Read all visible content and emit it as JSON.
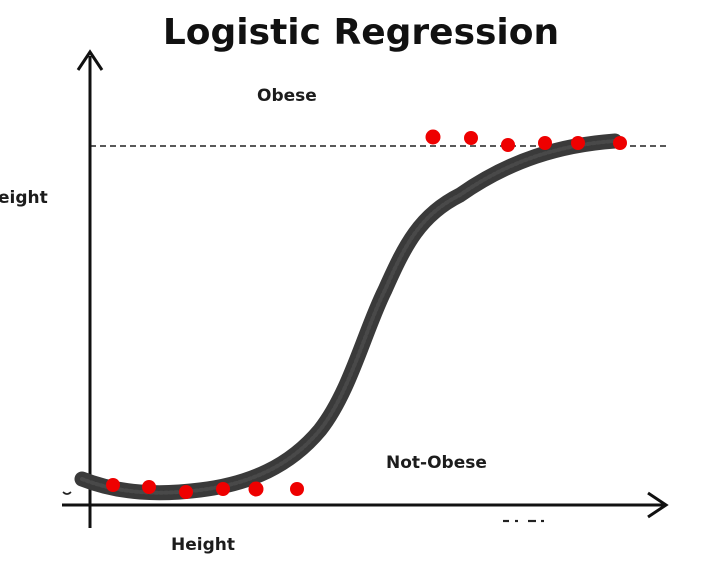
{
  "title": "Logistic Regression",
  "labels": {
    "upper_class": "Obese",
    "lower_class": "Not-Obese",
    "y_axis": "eight",
    "x_axis": "Height"
  },
  "colors": {
    "curve": "#3a3a3a",
    "points": "#ee0000",
    "axes": "#111111",
    "threshold_line": "#222222"
  }
}
